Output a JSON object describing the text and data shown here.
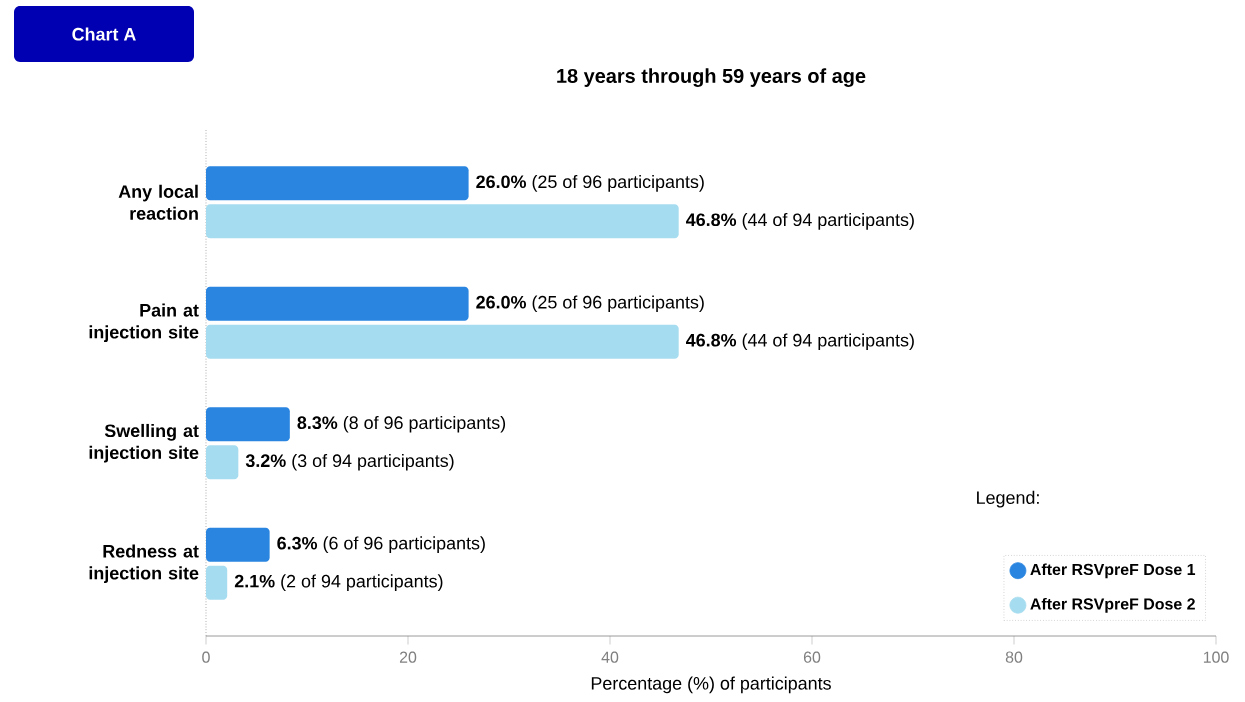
{
  "chart_data": {
    "type": "bar",
    "orientation": "horizontal",
    "title": "18 years through 59 years of age",
    "xlabel": "Percentage (%) of participants",
    "annotations": [
      "Chart A"
    ],
    "legend_title": "Legend:",
    "categories": [
      "Any local reaction",
      "Pain at injection site",
      "Swelling at injection site",
      "Redness at injection site"
    ],
    "series": [
      {
        "name": "After RSVpreF Dose 1",
        "color": "#2a85e0",
        "values": [
          26.0,
          26.0,
          8.3,
          6.3
        ],
        "value_labels": [
          "**26.0%** (25 of 96 participants)",
          "**26.0%** (25 of 96 participants)",
          "**8.3%** (8 of 96 participants)",
          "**6.3%** (6 of 96 participants)"
        ]
      },
      {
        "name": "After RSVpreF Dose 2",
        "color": "#a6dcef",
        "values": [
          46.8,
          46.8,
          3.2,
          2.1
        ],
        "value_labels": [
          "**46.8%** (44 of 94 participants)",
          "**46.8%** (44 of 94 participants)",
          "**3.2%** (3 of 94 participants)",
          "**2.1%** (2 of 94 participants)"
        ]
      }
    ],
    "xlim": [
      0,
      100
    ],
    "xticks": [
      0,
      20,
      40,
      60,
      80,
      100
    ],
    "grid": false,
    "legend": "bottom right"
  }
}
